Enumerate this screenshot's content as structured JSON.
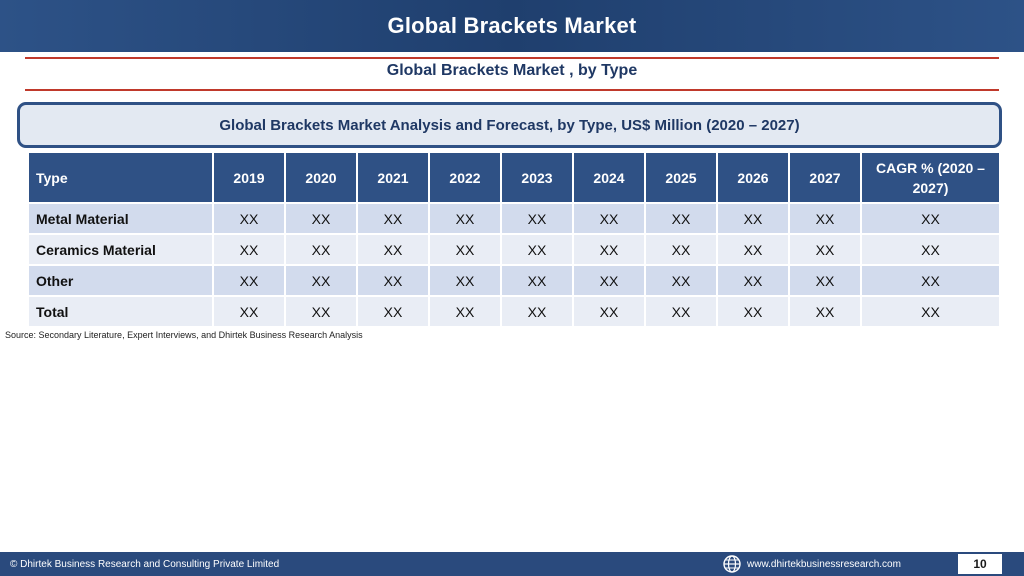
{
  "header": {
    "title": "Global Brackets Market"
  },
  "subtitle": "Global Brackets Market , by Type",
  "banner": "Global Brackets Market  Analysis and Forecast, by Type, US$ Million (2020 – 2027)",
  "table": {
    "headers": [
      "Type",
      "2019",
      "2020",
      "2021",
      "2022",
      "2023",
      "2024",
      "2025",
      "2026",
      "2027",
      "CAGR % (2020 – 2027)"
    ],
    "rows": [
      [
        "Metal Material",
        "XX",
        "XX",
        "XX",
        "XX",
        "XX",
        "XX",
        "XX",
        "XX",
        "XX",
        "XX"
      ],
      [
        "Ceramics Material",
        "XX",
        "XX",
        "XX",
        "XX",
        "XX",
        "XX",
        "XX",
        "XX",
        "XX",
        "XX"
      ],
      [
        "Other",
        "XX",
        "XX",
        "XX",
        "XX",
        "XX",
        "XX",
        "XX",
        "XX",
        "XX",
        "XX"
      ],
      [
        "Total",
        "XX",
        "XX",
        "XX",
        "XX",
        "XX",
        "XX",
        "XX",
        "XX",
        "XX",
        "XX"
      ]
    ]
  },
  "source": "Source: Secondary Literature, Expert Interviews, and Dhirtek Business Research Analysis",
  "footer": {
    "copyright": "© Dhirtek Business Research and Consulting Private Limited",
    "website": "www.dhirtekbusinessresearch.com",
    "website_icon": "globe-icon",
    "page_number": "10"
  },
  "colors": {
    "header_bg": "#1f3f6e",
    "table_header": "#2f5185",
    "rule": "#c0392b",
    "row_dark": "#d2dbed",
    "row_light": "#e9edf5"
  }
}
